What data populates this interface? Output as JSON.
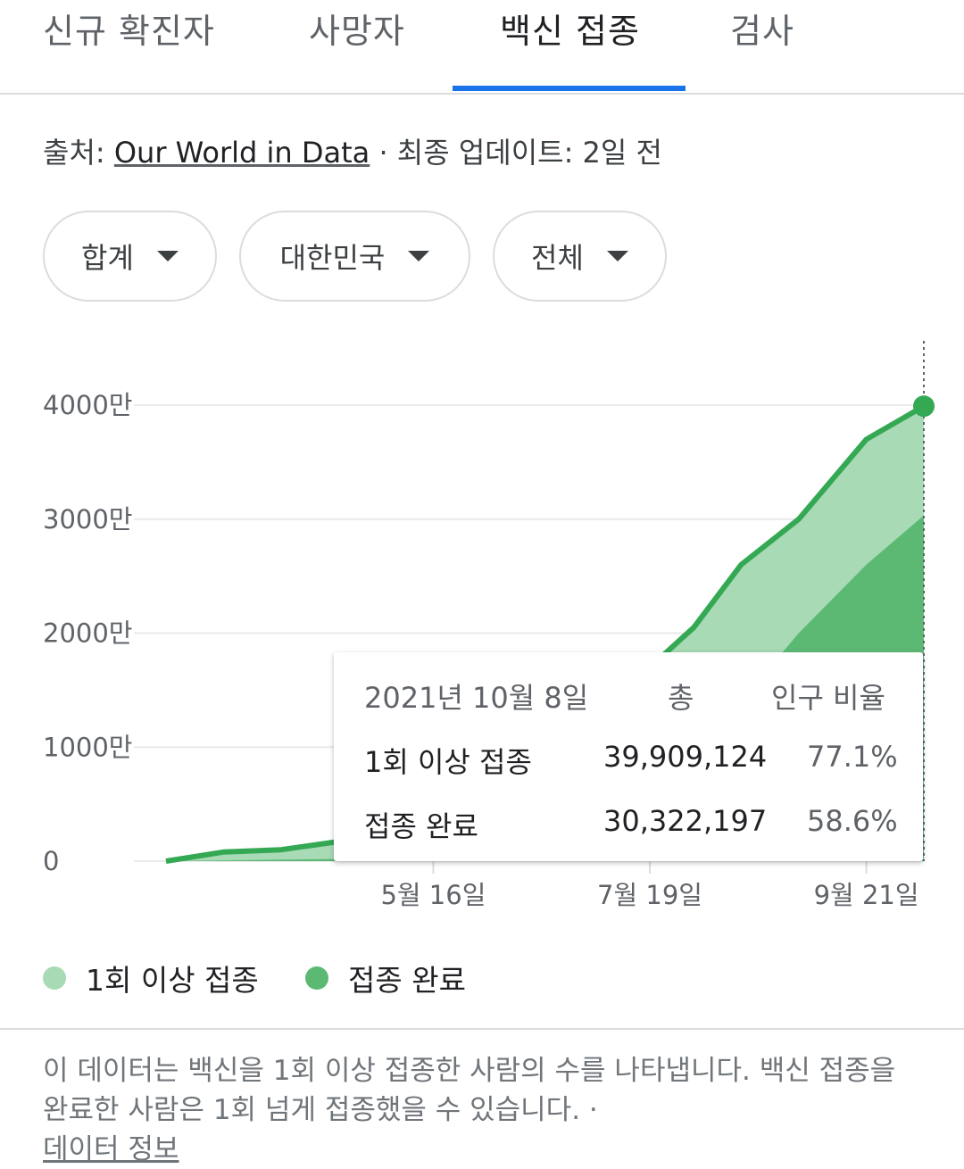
{
  "tabs": [
    {
      "label": "신규 확진자"
    },
    {
      "label": "사망자"
    },
    {
      "label": "백신 접종"
    },
    {
      "label": "검사"
    }
  ],
  "source": {
    "prefix": "출처:",
    "link": "Our World in Data",
    "suffix": "· 최종 업데이트: 2일 전"
  },
  "filters": [
    {
      "label": "합계"
    },
    {
      "label": "대한민국"
    },
    {
      "label": "전체"
    }
  ],
  "colors": {
    "accent": "#1a73e8",
    "series_at_least_one": "#a8dab5",
    "series_fully": "#5bb974",
    "line": "#34a853"
  },
  "chart_data": {
    "type": "area",
    "y_ticks": [
      "4000만",
      "3000만",
      "2000만",
      "1000만",
      "0"
    ],
    "x_ticks": [
      "5월 16일",
      "7월 19일",
      "9월 21일"
    ],
    "ylim": [
      0,
      40000000
    ],
    "series": [
      {
        "name": "1회 이상 접종",
        "x": [
          "2021-02-26",
          "2021-03-15",
          "2021-04-01",
          "2021-04-20",
          "2021-05-16",
          "2021-06-01",
          "2021-06-20",
          "2021-07-19",
          "2021-08-01",
          "2021-08-15",
          "2021-09-01",
          "2021-09-21",
          "2021-10-08"
        ],
        "values": [
          0,
          800000,
          1000000,
          1800000,
          3200000,
          7500000,
          15000000,
          17000000,
          20500000,
          26000000,
          30000000,
          37000000,
          39909124
        ]
      },
      {
        "name": "접종 완료",
        "x": [
          "2021-02-26",
          "2021-04-20",
          "2021-05-16",
          "2021-06-20",
          "2021-07-19",
          "2021-08-15",
          "2021-09-01",
          "2021-09-21",
          "2021-10-08"
        ],
        "values": [
          0,
          200000,
          600000,
          3000000,
          6000000,
          14000000,
          20000000,
          26000000,
          30322197
        ]
      }
    ],
    "grid": true,
    "legend": "bottom"
  },
  "tooltip": {
    "date": "2021년 10월 8일",
    "col_total": "총",
    "col_ratio": "인구 비율",
    "rows": [
      {
        "label": "1회 이상 접종",
        "total": "39,909,124",
        "ratio": "77.1%"
      },
      {
        "label": "접종 완료",
        "total": "30,322,197",
        "ratio": "58.6%"
      }
    ]
  },
  "legend": [
    {
      "label": "1회 이상 접종"
    },
    {
      "label": "접종 완료"
    }
  ],
  "note": {
    "text": "이 데이터는 백신을 1회 이상 접종한 사람의 수를 나타냅니다. 백신 접종을 완료한 사람은 1회 넘게 접종했을 수 있습니다. ·",
    "link": "데이터 정보"
  }
}
